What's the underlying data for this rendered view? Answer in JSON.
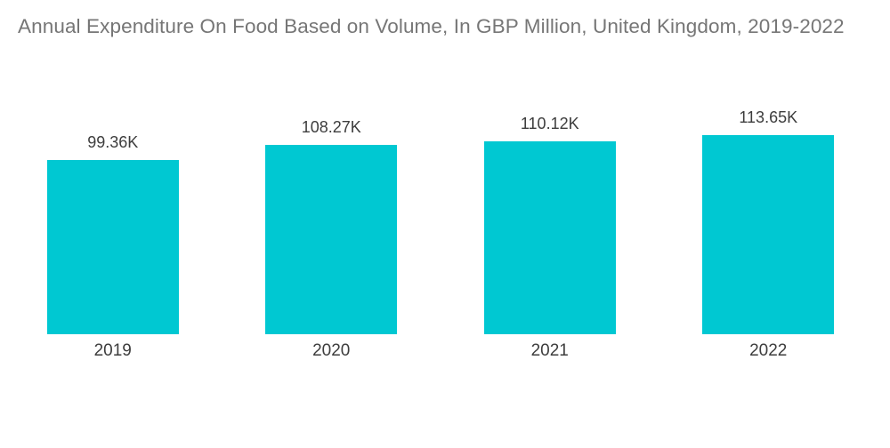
{
  "title": "Annual Expenditure On Food Based on Volume, In GBP Million, United Kingdom, 2019-2022",
  "colors": {
    "bar": "#00C8D2",
    "title_text": "#767676",
    "label_text": "#3D3D3D",
    "background": "#FFFFFF"
  },
  "chart_data": {
    "type": "bar",
    "title": "Annual Expenditure On Food Based on Volume, In GBP Million, United Kingdom, 2019-2022",
    "categories": [
      "2019",
      "2020",
      "2021",
      "2022"
    ],
    "values": [
      99.36,
      108.27,
      110.12,
      113.65
    ],
    "value_labels": [
      "99.36K",
      "108.27K",
      "110.12K",
      "113.65K"
    ],
    "unit": "K (GBP Million)",
    "xlabel": "",
    "ylabel": "",
    "ylim": [
      0,
      120
    ],
    "grid": false,
    "axes_visible": false,
    "legend": "none",
    "bar_color": "#00C8D2"
  }
}
